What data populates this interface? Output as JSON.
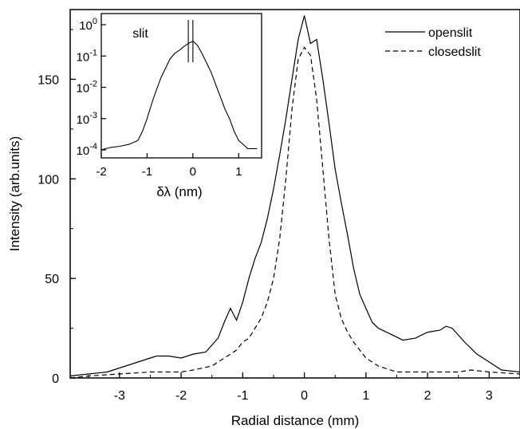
{
  "chart_data": [
    {
      "type": "line",
      "title": "",
      "xlabel": "Radial distance (mm)",
      "ylabel": "Intensity (arb.units)",
      "xlim": [
        -3.8,
        3.5
      ],
      "ylim": [
        0,
        185
      ],
      "x_ticks": [
        -3,
        -2,
        -1,
        0,
        1,
        2,
        3
      ],
      "x_tick_labels": [
        "-3",
        "-2",
        "-1",
        "0",
        "1",
        "2",
        "3"
      ],
      "y_ticks": [
        0,
        50,
        100,
        150
      ],
      "y_tick_labels": [
        "0",
        "50",
        "100",
        "150"
      ],
      "legend": {
        "position": "top-right"
      },
      "series": [
        {
          "name": "openslit",
          "style": "solid",
          "x": [
            -3.8,
            -3.5,
            -3.2,
            -3.0,
            -2.8,
            -2.6,
            -2.4,
            -2.2,
            -2.0,
            -1.8,
            -1.6,
            -1.4,
            -1.3,
            -1.2,
            -1.1,
            -1.0,
            -0.9,
            -0.8,
            -0.7,
            -0.6,
            -0.5,
            -0.4,
            -0.3,
            -0.2,
            -0.1,
            0.0,
            0.1,
            0.2,
            0.3,
            0.4,
            0.5,
            0.6,
            0.7,
            0.8,
            0.9,
            1.0,
            1.1,
            1.2,
            1.4,
            1.6,
            1.8,
            2.0,
            2.2,
            2.3,
            2.4,
            2.6,
            2.8,
            3.0,
            3.2,
            3.5
          ],
          "y": [
            1,
            2,
            3,
            5,
            7,
            9,
            11,
            11,
            10,
            12,
            13,
            20,
            28,
            35,
            29,
            38,
            50,
            60,
            68,
            80,
            95,
            112,
            130,
            150,
            170,
            182,
            168,
            170,
            150,
            128,
            105,
            88,
            72,
            55,
            42,
            35,
            28,
            25,
            22,
            19,
            20,
            23,
            24,
            26,
            25,
            18,
            12,
            8,
            4,
            3
          ]
        },
        {
          "name": "closedslit",
          "style": "dashed",
          "x": [
            -3.8,
            -3.5,
            -3.0,
            -2.5,
            -2.0,
            -1.8,
            -1.5,
            -1.3,
            -1.1,
            -1.0,
            -0.9,
            -0.8,
            -0.7,
            -0.6,
            -0.5,
            -0.4,
            -0.3,
            -0.2,
            -0.1,
            0.0,
            0.1,
            0.2,
            0.3,
            0.4,
            0.5,
            0.6,
            0.7,
            0.8,
            0.9,
            1.0,
            1.2,
            1.5,
            2.0,
            2.5,
            2.7,
            3.0,
            3.5
          ],
          "y": [
            0,
            1,
            2,
            3,
            3,
            4,
            6,
            10,
            14,
            18,
            20,
            25,
            30,
            38,
            50,
            70,
            100,
            135,
            160,
            166,
            162,
            140,
            105,
            70,
            42,
            30,
            23,
            18,
            14,
            10,
            6,
            3,
            3,
            3,
            4,
            3,
            2
          ]
        }
      ]
    },
    {
      "type": "line",
      "title": "slit",
      "xlabel": "δλ (nm)",
      "ylabel": "",
      "xlim": [
        -2,
        1.5
      ],
      "ylim": [
        0.0001,
        1
      ],
      "y_scale": "log",
      "x_ticks": [
        -2,
        -1,
        0,
        1
      ],
      "x_tick_labels": [
        "-2",
        "-1",
        "0",
        "1"
      ],
      "y_ticks": [
        1,
        0.1,
        0.01,
        0.001,
        0.0001
      ],
      "y_tick_labels": [
        {
          "base": "10",
          "exp": "0"
        },
        {
          "base": "10",
          "exp": "-1"
        },
        {
          "base": "10",
          "exp": "-2"
        },
        {
          "base": "10",
          "exp": "-3"
        },
        {
          "base": "10",
          "exp": "-4"
        }
      ],
      "slit_marks_x": [
        -0.1,
        0.0
      ],
      "series": [
        {
          "x": [
            -2.0,
            -1.8,
            -1.6,
            -1.4,
            -1.2,
            -1.1,
            -1.0,
            -0.9,
            -0.8,
            -0.7,
            -0.6,
            -0.5,
            -0.4,
            -0.3,
            -0.2,
            -0.1,
            0.0,
            0.1,
            0.2,
            0.3,
            0.4,
            0.5,
            0.6,
            0.7,
            0.8,
            0.9,
            1.0,
            1.1,
            1.2,
            1.4
          ],
          "y": [
            0.0001,
            0.00012,
            0.00013,
            0.00015,
            0.0002,
            0.0004,
            0.001,
            0.003,
            0.008,
            0.02,
            0.04,
            0.08,
            0.12,
            0.15,
            0.2,
            0.25,
            0.3,
            0.22,
            0.12,
            0.06,
            0.03,
            0.012,
            0.005,
            0.002,
            0.001,
            0.0004,
            0.0002,
            0.00015,
            0.00011,
            0.00011
          ]
        }
      ]
    }
  ]
}
